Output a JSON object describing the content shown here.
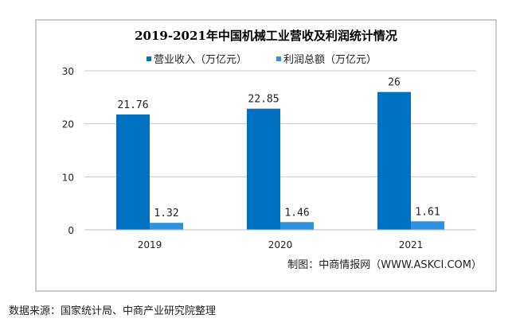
{
  "chart_data": {
    "type": "bar",
    "title": "2019-2021年中国机械工业营收及利润统计情况",
    "categories": [
      "2019",
      "2020",
      "2021"
    ],
    "series": [
      {
        "name": "营业收入（万亿元）",
        "values": [
          21.76,
          22.85,
          26
        ],
        "labels": [
          "21.76",
          "22.85",
          "26"
        ],
        "color": "#0070C0"
      },
      {
        "name": "利润总额（万亿元）",
        "values": [
          1.32,
          1.46,
          1.61
        ],
        "labels": [
          "1.32",
          "1.46",
          "1.61"
        ],
        "color": "#2E90E0"
      }
    ],
    "ylim": [
      0,
      30
    ],
    "yticks": [
      0,
      10,
      20,
      30
    ],
    "grid": true,
    "legend": "top",
    "xlabel": "",
    "ylabel": ""
  },
  "credit": "制图：中商情报网（WWW.ASKCI.COM）",
  "source_note": "数据来源：国家统计局、中商产业研究院整理"
}
